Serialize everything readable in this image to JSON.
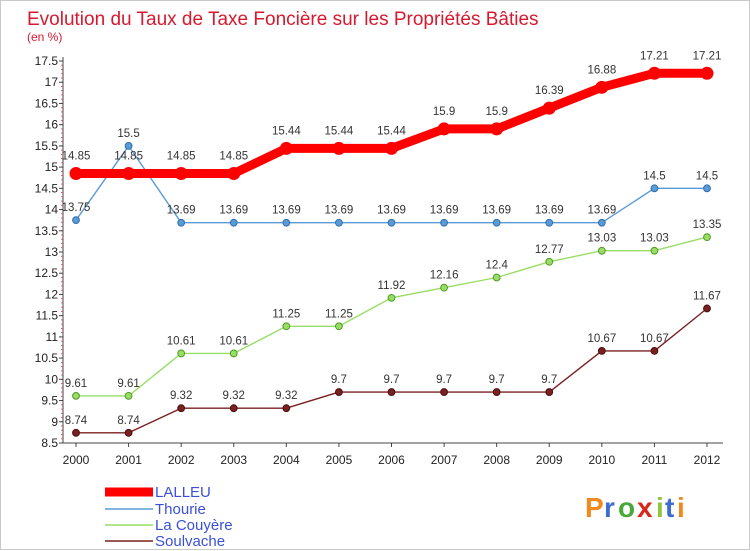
{
  "chart_data": {
    "type": "line",
    "title": "Evolution du Taux de Taxe Foncière sur les Propriétés Bâties",
    "subtitle": "(en %)",
    "categories": [
      "2000",
      "2001",
      "2002",
      "2003",
      "2004",
      "2005",
      "2006",
      "2007",
      "2008",
      "2009",
      "2010",
      "2011",
      "2012"
    ],
    "ylim": [
      8.5,
      17.5
    ],
    "yticks": [
      "8.5",
      "9",
      "9.5",
      "10",
      "10.5",
      "11",
      "11.5",
      "12",
      "12.5",
      "13",
      "13.5",
      "14",
      "14.5",
      "15",
      "15.5",
      "16",
      "16.5",
      "17",
      "17.5"
    ],
    "grid": false,
    "legend_position": "bottom-left",
    "series": [
      {
        "name": "LALLEU",
        "color": "#ff0000",
        "values": [
          14.85,
          14.85,
          14.85,
          14.85,
          15.44,
          15.44,
          15.44,
          15.9,
          15.9,
          16.39,
          16.88,
          17.21,
          17.21
        ],
        "labels": [
          "14.85",
          "14.85",
          "14.85",
          "14.85",
          "15.44",
          "15.44",
          "15.44",
          "15.9",
          "15.9",
          "16.39",
          "16.88",
          "17.21",
          "17.21"
        ]
      },
      {
        "name": "Thourie",
        "color": "#5b9bd5",
        "values": [
          13.75,
          15.5,
          13.69,
          13.69,
          13.69,
          13.69,
          13.69,
          13.69,
          13.69,
          13.69,
          13.69,
          14.5,
          14.5
        ],
        "labels": [
          "13.75",
          "15.5",
          "13.69",
          "13.69",
          "13.69",
          "13.69",
          "13.69",
          "13.69",
          "13.69",
          "13.69",
          "13.69",
          "14.5",
          "14.5"
        ]
      },
      {
        "name": "La Couyère",
        "color": "#99dd66",
        "values": [
          9.61,
          9.61,
          10.61,
          10.61,
          11.25,
          11.25,
          11.92,
          12.16,
          12.4,
          12.77,
          13.03,
          13.03,
          13.35
        ],
        "labels": [
          "9.61",
          "9.61",
          "10.61",
          "10.61",
          "11.25",
          "11.25",
          "11.92",
          "12.16",
          "12.4",
          "12.77",
          "13.03",
          "13.03",
          "13.35"
        ]
      },
      {
        "name": "Soulvache",
        "color": "#7a2020",
        "values": [
          8.74,
          8.74,
          9.32,
          9.32,
          9.32,
          9.7,
          9.7,
          9.7,
          9.7,
          9.7,
          10.67,
          10.67,
          11.67
        ],
        "labels": [
          "8.74",
          "8.74",
          "9.32",
          "9.32",
          "9.32",
          "9.7",
          "9.7",
          "9.7",
          "9.7",
          "9.7",
          "10.67",
          "10.67",
          "11.67"
        ]
      }
    ]
  },
  "logo": {
    "text": "Proxiti",
    "colors": [
      "#f08a1e",
      "#3f6ccf",
      "#4aa83a",
      "#d8261b",
      "#8ec63f"
    ]
  }
}
